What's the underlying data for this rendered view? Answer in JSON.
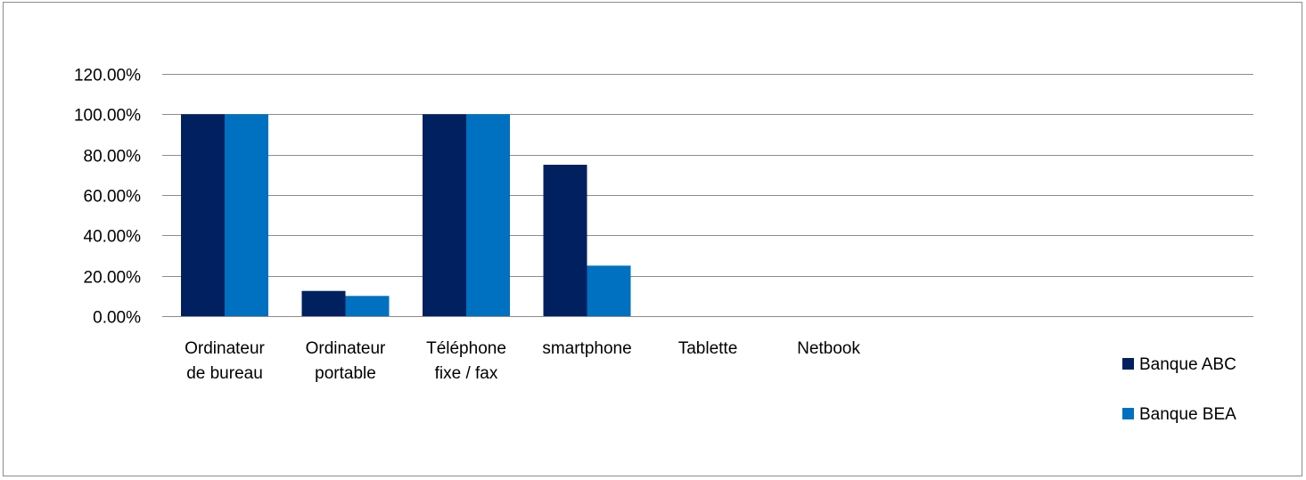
{
  "chart_data": {
    "type": "bar",
    "title": "",
    "xlabel": "",
    "ylabel": "",
    "ylim": [
      0,
      1.2
    ],
    "y_ticks": [
      "0.00%",
      "20.00%",
      "40.00%",
      "60.00%",
      "80.00%",
      "100.00%",
      "120.00%"
    ],
    "grid": true,
    "legend_position": "right",
    "categories": [
      [
        "Ordinateur",
        "de bureau"
      ],
      [
        "Ordinateur",
        "portable"
      ],
      [
        "Téléphone",
        "fixe / fax"
      ],
      [
        "smartphone"
      ],
      [
        "Tablette"
      ],
      [
        "Netbook"
      ]
    ],
    "series": [
      {
        "name": "Banque ABC",
        "color": "#002060",
        "values": [
          1.0,
          0.125,
          1.0,
          0.75,
          0,
          0
        ]
      },
      {
        "name": "Banque BEA",
        "color": "#0070C0",
        "values": [
          1.0,
          0.1,
          1.0,
          0.25,
          0,
          0
        ]
      }
    ]
  }
}
